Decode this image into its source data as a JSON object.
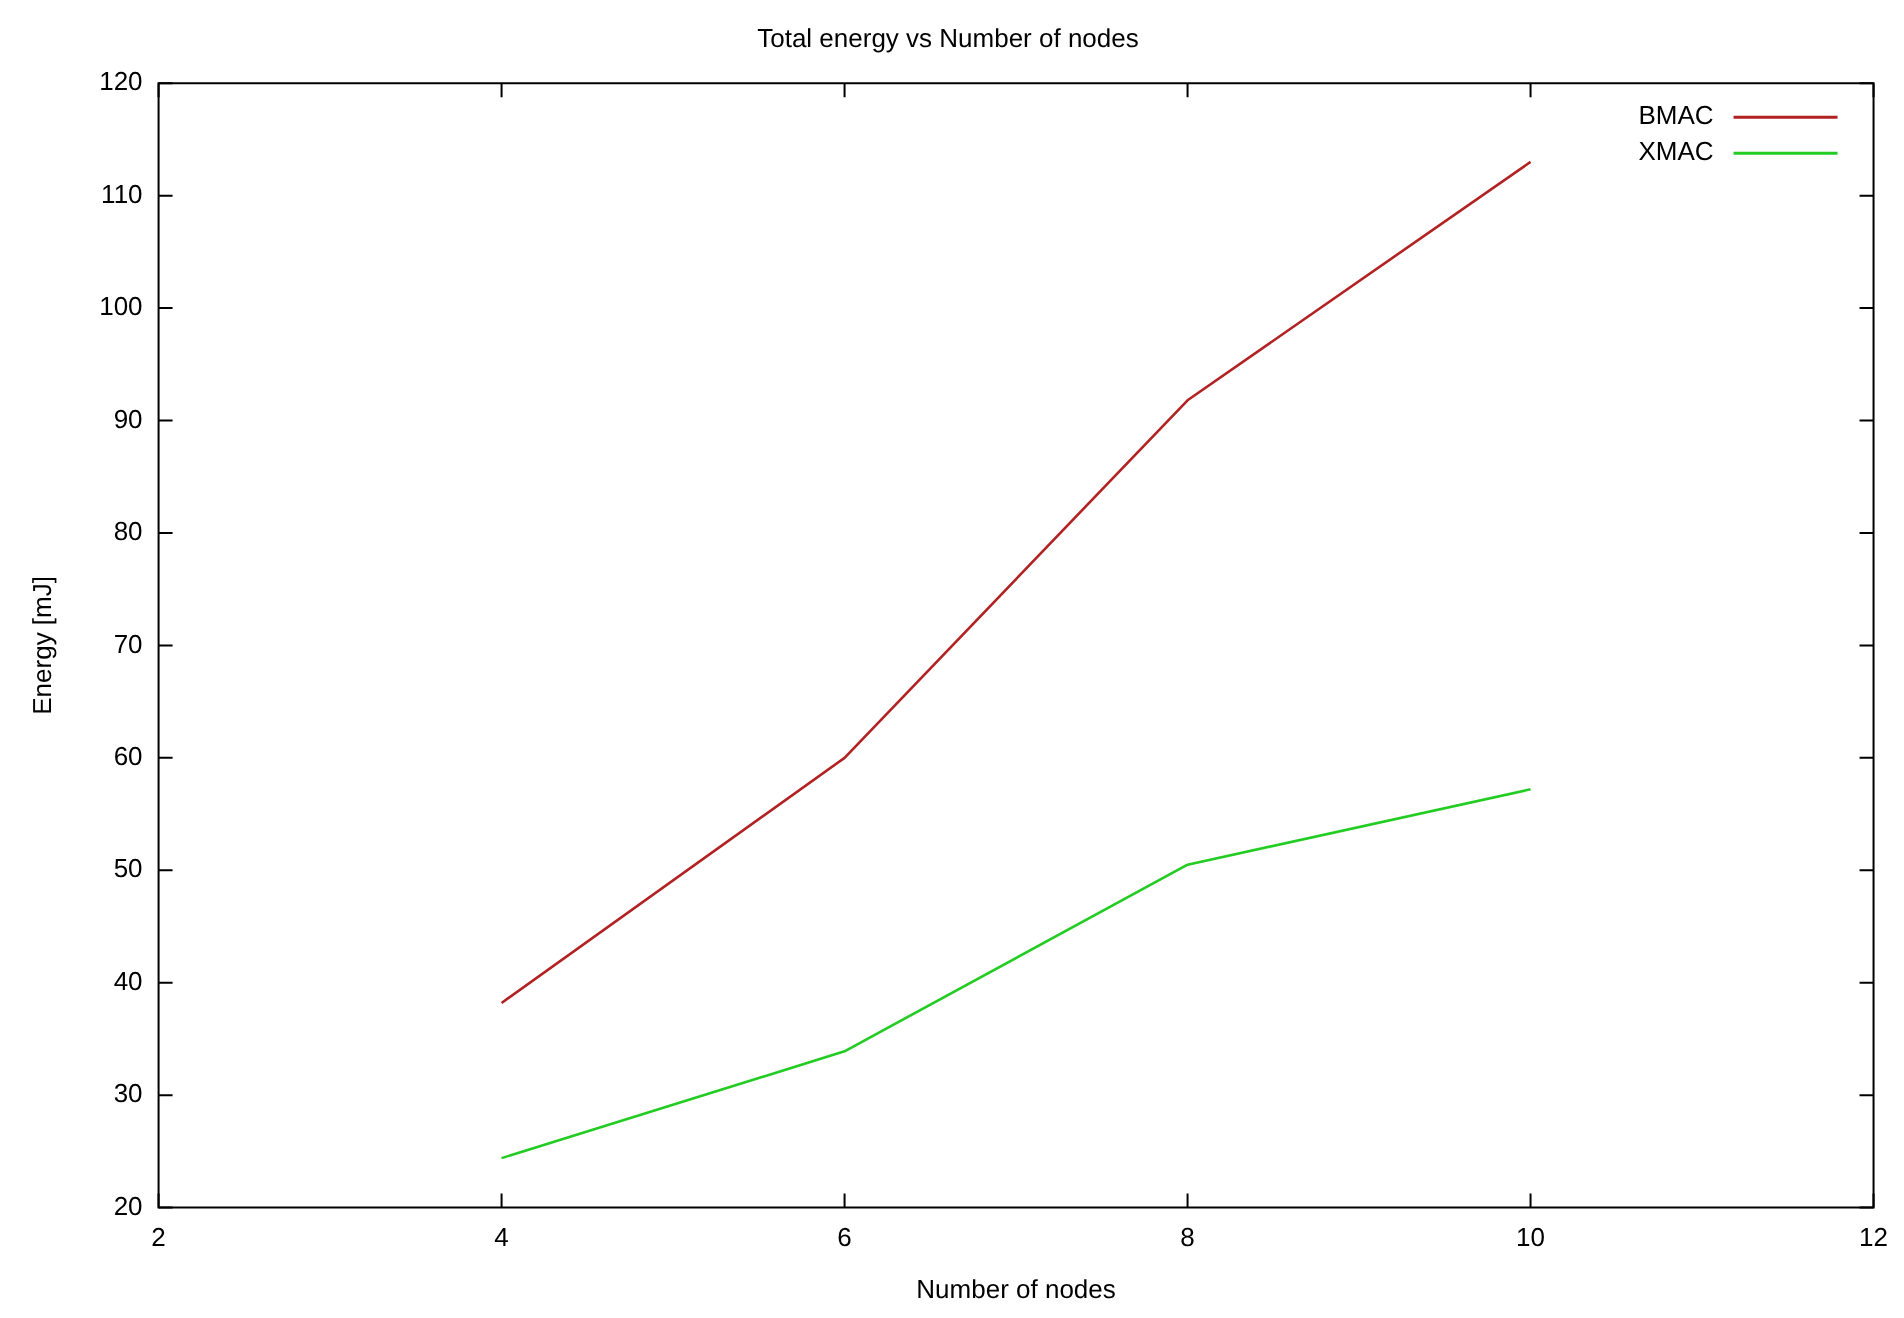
{
  "chart_data": {
    "type": "line",
    "title": "Total energy vs Number of nodes",
    "xlabel": "Number of nodes",
    "ylabel": "Energy [mJ]",
    "x": [
      4,
      6,
      8,
      10
    ],
    "series": [
      {
        "name": "BMAC",
        "color": "#b22222",
        "values": [
          38.2,
          60,
          91.8,
          113
        ]
      },
      {
        "name": "XMAC",
        "color": "#22cc22",
        "values": [
          24.4,
          33.9,
          50.5,
          57.2
        ]
      }
    ],
    "xlim": [
      2,
      12
    ],
    "xticks": [
      2,
      4,
      6,
      8,
      10,
      12
    ],
    "ylim": [
      20,
      120
    ],
    "yticks": [
      20,
      30,
      40,
      50,
      60,
      70,
      80,
      90,
      100,
      110,
      120
    ],
    "grid": false,
    "legend": "top right",
    "marker": "none",
    "line_style": "solid"
  }
}
